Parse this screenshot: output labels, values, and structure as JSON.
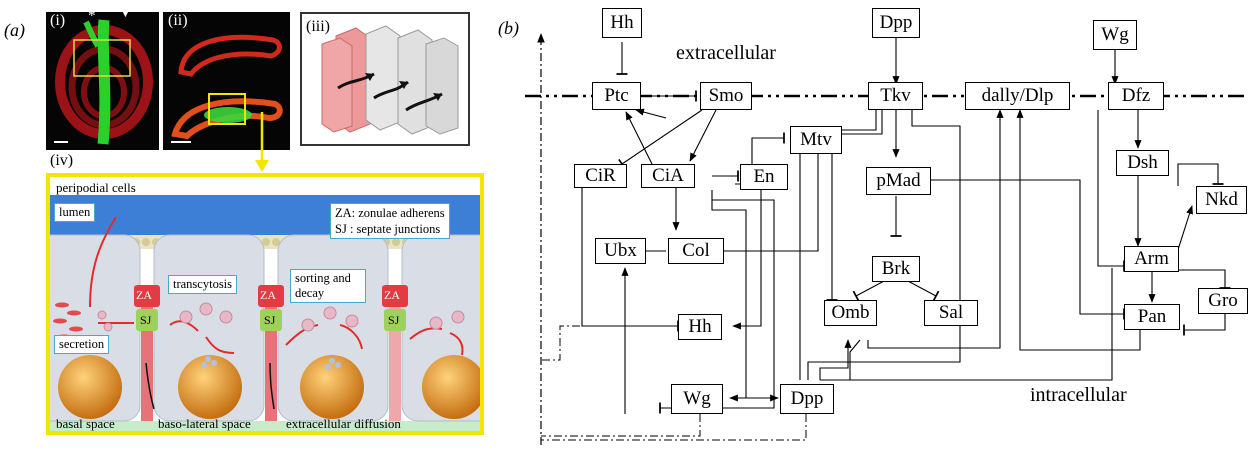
{
  "panel_a": {
    "label": "(a)",
    "sub_i": "(i)",
    "sub_ii": "(ii)",
    "sub_iii": "(iii)",
    "sub_iv": "(iv)",
    "marker_star": "*",
    "marker_triangle": "▼",
    "schematic": {
      "peripodial": "peripodial cells",
      "lumen": "lumen",
      "legend_za": "ZA: zonulae adherens",
      "legend_sj": "SJ : septate junctions",
      "za": "ZA",
      "sj": "SJ",
      "transcytosis": "transcytosis",
      "sorting": "sorting and decay",
      "secretion": "secretion",
      "basal_space": "basal space",
      "baso_lateral": "baso-lateral space",
      "extracellular_diffusion": "extracellular diffusion"
    },
    "colors": {
      "frame": "#f2e600",
      "lumen": "#3d7fd6",
      "basal": "#c6eec6",
      "cell": "#d9dee6",
      "junction": "#e8727a",
      "nucleus": "#e59a2f"
    }
  },
  "panel_b": {
    "label": "(b)",
    "extracellular": "extracellular",
    "intracellular": "intracellular",
    "nodes": {
      "hh_top": "Hh",
      "dpp_top": "Dpp",
      "wg_top": "Wg",
      "ptc": "Ptc",
      "smo": "Smo",
      "tkv": "Tkv",
      "dally": "dally/Dlp",
      "dfz": "Dfz",
      "mtv": "Mtv",
      "dsh": "Dsh",
      "nkd": "Nkd",
      "cir": "CiR",
      "cia": "CiA",
      "en": "En",
      "pmad": "pMad",
      "arm": "Arm",
      "ubx": "Ubx",
      "col": "Col",
      "brk": "Brk",
      "gro": "Gro",
      "omb": "Omb",
      "sal": "Sal",
      "hh_mid": "Hh",
      "pan": "Pan",
      "wg_bot": "Wg",
      "dpp_bot": "Dpp"
    }
  }
}
